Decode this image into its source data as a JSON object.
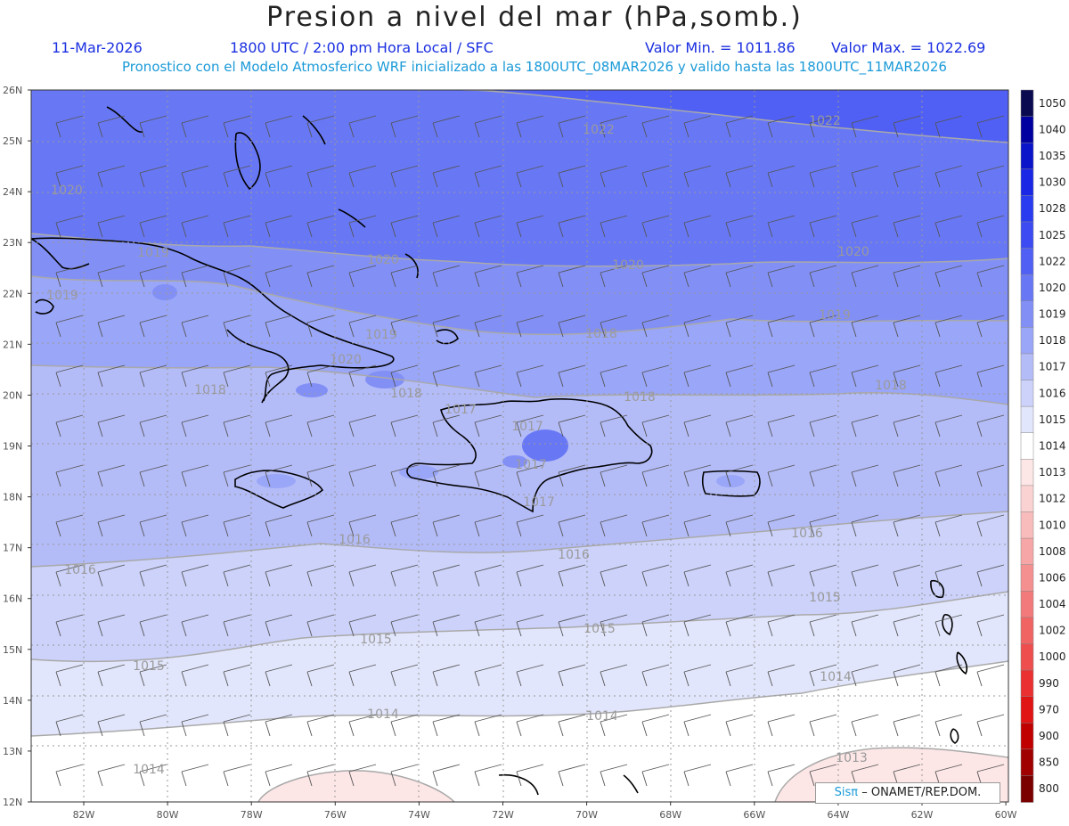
{
  "header": {
    "title": "Presion a nivel del mar (hPa,somb.)",
    "date": "11-Mar-2026",
    "time": "1800 UTC / 2:00 pm Hora Local / SFC",
    "min_label": "Valor Min. = 1011.86",
    "max_label": "Valor Max. = 1022.69",
    "forecast_note": "Pronostico con el Modelo Atmosferico WRF inicializado a las 1800UTC_08MAR2026 y valido hasta las  1800UTC_11MAR2026"
  },
  "axes": {
    "lat_labels": [
      "26N",
      "25N",
      "24N",
      "23N",
      "22N",
      "21N",
      "20N",
      "19N",
      "18N",
      "17N",
      "16N",
      "15N",
      "14N",
      "13N",
      "12N"
    ],
    "lon_labels": [
      "82W",
      "80W",
      "78W",
      "76W",
      "74W",
      "72W",
      "70W",
      "68W",
      "66W",
      "64W",
      "62W",
      "60W"
    ]
  },
  "colorbar": {
    "levels": [
      "1050",
      "1040",
      "1035",
      "1030",
      "1028",
      "1025",
      "1022",
      "1020",
      "1019",
      "1018",
      "1017",
      "1016",
      "1015",
      "1014",
      "1013",
      "1012",
      "1010",
      "1008",
      "1006",
      "1004",
      "1002",
      "1000",
      "990",
      "970",
      "900",
      "850",
      "800"
    ],
    "colors": [
      "#0a0a50",
      "#0000a0",
      "#0a14c8",
      "#1a28e6",
      "#2a3cf0",
      "#3c4cf2",
      "#5060f4",
      "#6878f5",
      "#8290f6",
      "#9aa6f7",
      "#b4bcf8",
      "#ccd2fa",
      "#e2e6fc",
      "#ffffff",
      "#fde6e6",
      "#fbd2d2",
      "#f8bcbc",
      "#f6a6a6",
      "#f49090",
      "#f27a7a",
      "#f06464",
      "#ee4e4e",
      "#ea3030",
      "#e01414",
      "#c00000",
      "#a00000",
      "#7a0000"
    ]
  },
  "isobar_labels": [
    "1022",
    "1022",
    "1020",
    "1019",
    "1020",
    "1020",
    "1020",
    "1019",
    "1019",
    "1018",
    "1019",
    "1020",
    "1018",
    "1018",
    "1018",
    "1018",
    "1017",
    "1017",
    "1016",
    "1016",
    "1016",
    "1016",
    "1015",
    "1015",
    "1015",
    "1015",
    "1014",
    "1014",
    "1014",
    "1014",
    "1013",
    "1017",
    "1017"
  ],
  "credit": {
    "brand": "Sisπ",
    "text": "– ONAMET/REP.DOM."
  }
}
